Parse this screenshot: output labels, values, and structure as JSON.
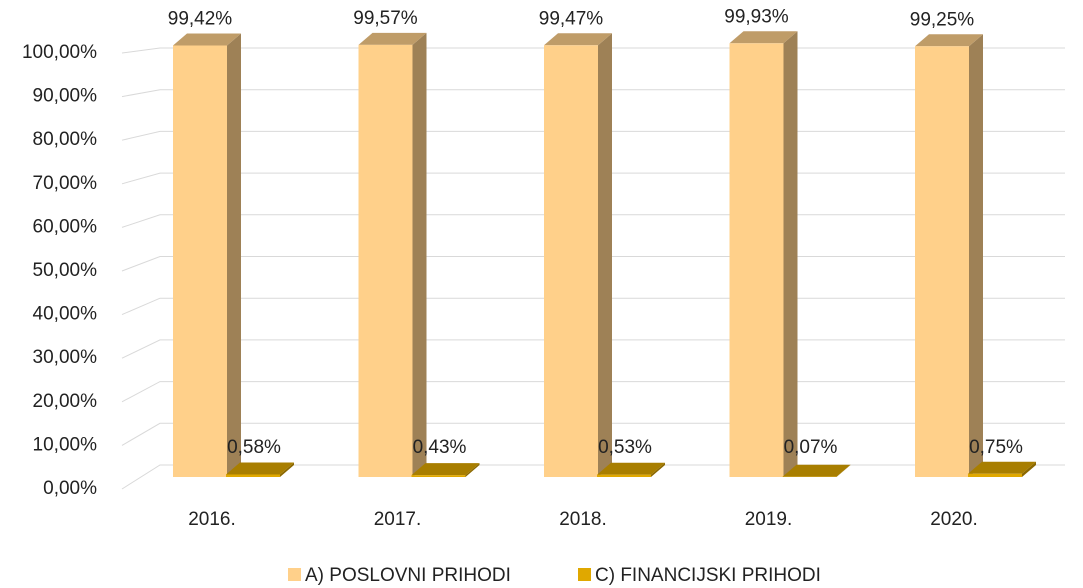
{
  "chart_data": {
    "type": "bar3d",
    "categories": [
      "2016.",
      "2017.",
      "2018.",
      "2019.",
      "2020."
    ],
    "series": [
      {
        "name": "A) POSLOVNI PRIHODI",
        "color": "#FFD08A",
        "values": [
          99.42,
          99.57,
          99.47,
          99.93,
          99.25
        ],
        "value_labels": [
          "99,42%",
          "99,57%",
          "99,47%",
          "99,93%",
          "99,25%"
        ]
      },
      {
        "name": "C) FINANCIJSKI PRIHODI",
        "color": "#E0A800",
        "values": [
          0.58,
          0.43,
          0.53,
          0.07,
          0.75
        ],
        "value_labels": [
          "0,58%",
          "0,43%",
          "0,53%",
          "0,07%",
          "0,75%"
        ]
      }
    ],
    "ylim": [
      0,
      100
    ],
    "yticks": [
      {
        "value": 0,
        "label": "0,00%"
      },
      {
        "value": 10,
        "label": "10,00%"
      },
      {
        "value": 20,
        "label": "20,00%"
      },
      {
        "value": 30,
        "label": "30,00%"
      },
      {
        "value": 40,
        "label": "40,00%"
      },
      {
        "value": 50,
        "label": "50,00%"
      },
      {
        "value": 60,
        "label": "60,00%"
      },
      {
        "value": 70,
        "label": "70,00%"
      },
      {
        "value": 80,
        "label": "80,00%"
      },
      {
        "value": 90,
        "label": "90,00%"
      },
      {
        "value": 100,
        "label": "100,00%"
      }
    ],
    "grid": true,
    "legend": "bottom"
  }
}
